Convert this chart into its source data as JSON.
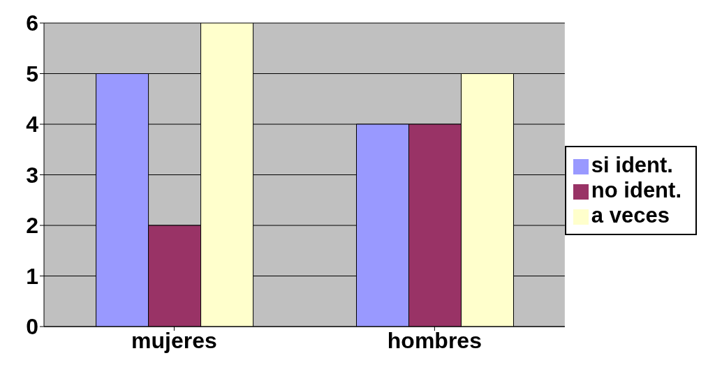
{
  "chart_data": {
    "type": "bar",
    "categories": [
      "mujeres",
      "hombres"
    ],
    "series": [
      {
        "name": "si ident.",
        "color": "#9999ff",
        "values": [
          5,
          4
        ]
      },
      {
        "name": "no ident.",
        "color": "#993366",
        "values": [
          2,
          4
        ]
      },
      {
        "name": "a veces",
        "color": "#ffffcc",
        "values": [
          6,
          5
        ]
      }
    ],
    "ylim": [
      0,
      6
    ],
    "yticks": [
      0,
      1,
      2,
      3,
      4,
      5,
      6
    ],
    "grid": "y",
    "legend": "right"
  }
}
